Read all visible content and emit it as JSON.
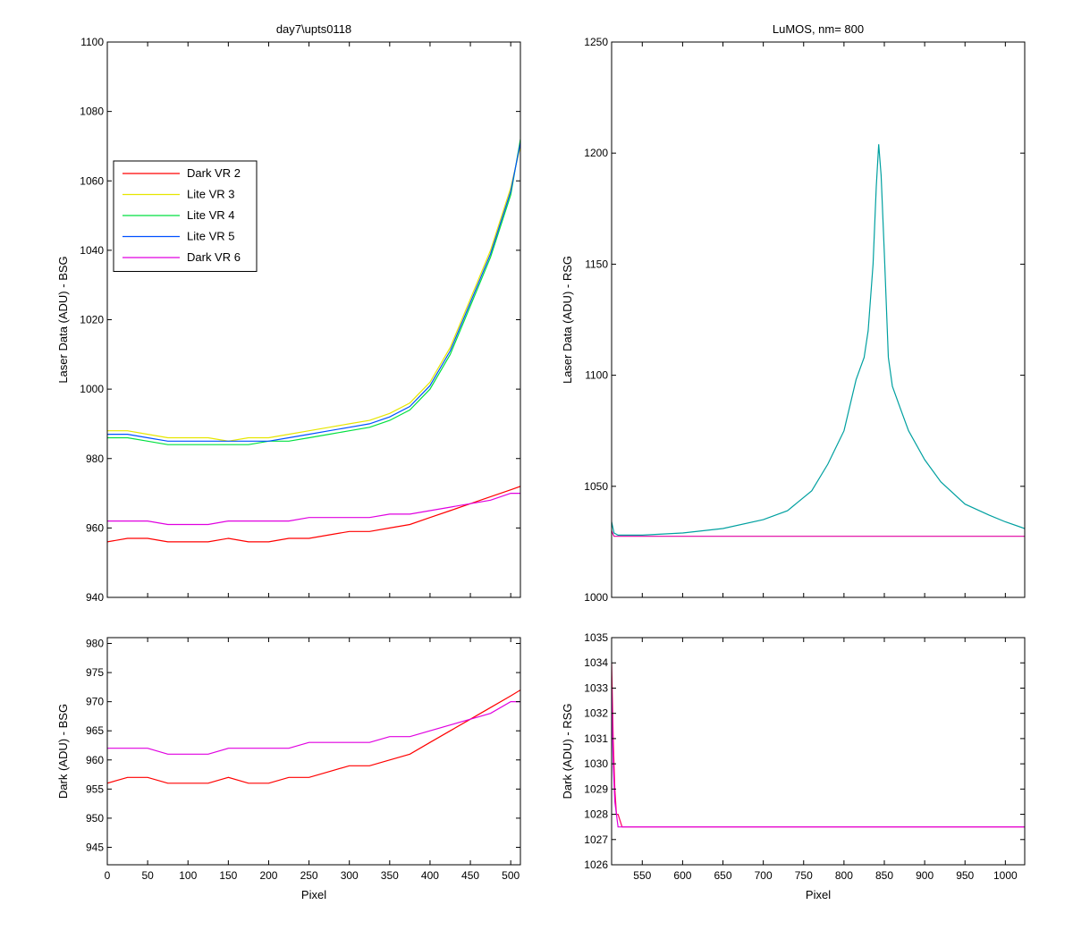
{
  "chart_data": [
    {
      "type": "line",
      "title": "day7\\upts0118",
      "xlabel": "",
      "ylabel": "Laser Data (ADU) - BSG",
      "xlim": [
        0,
        512
      ],
      "ylim": [
        940,
        1100
      ],
      "yticks": [
        940,
        960,
        980,
        1000,
        1020,
        1040,
        1060,
        1080,
        1100
      ],
      "xticks": [],
      "legend": {
        "placement": "upper-left",
        "entries": [
          "Dark VR 2",
          "Lite VR 3",
          "Lite VR 4",
          "Lite VR 5",
          "Dark VR 6"
        ]
      },
      "series": [
        {
          "name": "Dark VR 2",
          "color": "#ff0000",
          "x": [
            0,
            25,
            50,
            75,
            100,
            125,
            150,
            175,
            200,
            225,
            250,
            275,
            300,
            325,
            350,
            375,
            400,
            425,
            450,
            475,
            500,
            512
          ],
          "values": [
            956,
            957,
            957,
            956,
            956,
            956,
            957,
            956,
            956,
            957,
            957,
            958,
            959,
            959,
            960,
            961,
            963,
            965,
            967,
            969,
            971,
            972
          ]
        },
        {
          "name": "Lite VR 3",
          "color": "#e6e600",
          "x": [
            0,
            25,
            50,
            75,
            100,
            125,
            150,
            175,
            200,
            225,
            250,
            275,
            300,
            325,
            350,
            375,
            400,
            425,
            450,
            475,
            500,
            512
          ],
          "values": [
            988,
            988,
            987,
            986,
            986,
            986,
            985,
            986,
            986,
            987,
            988,
            989,
            990,
            991,
            993,
            996,
            1002,
            1012,
            1026,
            1040,
            1058,
            1070
          ]
        },
        {
          "name": "Lite VR 4",
          "color": "#00e040",
          "x": [
            0,
            25,
            50,
            75,
            100,
            125,
            150,
            175,
            200,
            225,
            250,
            275,
            300,
            325,
            350,
            375,
            400,
            425,
            450,
            475,
            500,
            512
          ],
          "values": [
            986,
            986,
            985,
            984,
            984,
            984,
            984,
            984,
            985,
            985,
            986,
            987,
            988,
            989,
            991,
            994,
            1000,
            1010,
            1024,
            1038,
            1056,
            1072
          ]
        },
        {
          "name": "Lite VR 5",
          "color": "#0050ff",
          "x": [
            0,
            25,
            50,
            75,
            100,
            125,
            150,
            175,
            200,
            225,
            250,
            275,
            300,
            325,
            350,
            375,
            400,
            425,
            450,
            475,
            500,
            512
          ],
          "values": [
            987,
            987,
            986,
            985,
            985,
            985,
            985,
            985,
            985,
            986,
            987,
            988,
            989,
            990,
            992,
            995,
            1001,
            1011,
            1025,
            1039,
            1057,
            1071
          ]
        },
        {
          "name": "Dark VR 6",
          "color": "#e000e0",
          "x": [
            0,
            25,
            50,
            75,
            100,
            125,
            150,
            175,
            200,
            225,
            250,
            275,
            300,
            325,
            350,
            375,
            400,
            425,
            450,
            475,
            500,
            512
          ],
          "values": [
            962,
            962,
            962,
            961,
            961,
            961,
            962,
            962,
            962,
            962,
            963,
            963,
            963,
            963,
            964,
            964,
            965,
            966,
            967,
            968,
            970,
            970
          ]
        }
      ]
    },
    {
      "type": "line",
      "title": "LuMOS, nm= 800",
      "xlabel": "",
      "ylabel": "Laser Data (ADU) - RSG",
      "xlim": [
        512,
        1024
      ],
      "ylim": [
        1000,
        1250
      ],
      "yticks": [
        1000,
        1050,
        1100,
        1150,
        1200,
        1250
      ],
      "xticks": [],
      "series": [
        {
          "name": "",
          "color": "#00a0a0",
          "x": [
            512,
            515,
            520,
            550,
            600,
            650,
            700,
            730,
            760,
            780,
            800,
            815,
            820,
            825,
            830,
            836,
            840,
            843,
            846,
            850,
            855,
            860,
            870,
            880,
            900,
            920,
            950,
            980,
            1000,
            1024
          ],
          "values": [
            1034,
            1029,
            1028,
            1028,
            1029,
            1031,
            1035,
            1039,
            1048,
            1060,
            1075,
            1098,
            1103,
            1108,
            1120,
            1150,
            1185,
            1204,
            1190,
            1155,
            1108,
            1095,
            1085,
            1075,
            1062,
            1052,
            1042,
            1037,
            1034,
            1031
          ]
        },
        {
          "name": "",
          "color": "#e000a0",
          "x": [
            512,
            515,
            520,
            600,
            700,
            800,
            900,
            1024
          ],
          "values": [
            1030,
            1027.5,
            1027.5,
            1027.5,
            1027.5,
            1027.5,
            1027.5,
            1027.5
          ]
        }
      ]
    },
    {
      "type": "line",
      "title": "",
      "xlabel": "Pixel",
      "ylabel": "Dark (ADU) - BSG",
      "xlim": [
        0,
        512
      ],
      "ylim": [
        942,
        981
      ],
      "yticks": [
        945,
        950,
        955,
        960,
        965,
        970,
        975,
        980
      ],
      "xticks": [
        0,
        50,
        100,
        150,
        200,
        250,
        300,
        350,
        400,
        450,
        500
      ],
      "series": [
        {
          "name": "Dark VR 2",
          "color": "#ff0000",
          "x": [
            0,
            25,
            50,
            75,
            100,
            125,
            150,
            175,
            200,
            225,
            250,
            275,
            300,
            325,
            350,
            375,
            400,
            425,
            450,
            475,
            500,
            512
          ],
          "values": [
            956,
            957,
            957,
            956,
            956,
            956,
            957,
            956,
            956,
            957,
            957,
            958,
            959,
            959,
            960,
            961,
            963,
            965,
            967,
            969,
            971,
            972
          ]
        },
        {
          "name": "Dark VR 6",
          "color": "#e000e0",
          "x": [
            0,
            25,
            50,
            75,
            100,
            125,
            150,
            175,
            200,
            225,
            250,
            275,
            300,
            325,
            350,
            375,
            400,
            425,
            450,
            475,
            500,
            512
          ],
          "values": [
            962,
            962,
            962,
            961,
            961,
            961,
            962,
            962,
            962,
            962,
            963,
            963,
            963,
            963,
            964,
            964,
            965,
            966,
            967,
            968,
            970,
            970
          ]
        }
      ]
    },
    {
      "type": "line",
      "title": "",
      "xlabel": "Pixel",
      "ylabel": "Dark (ADU) - RSG",
      "xlim": [
        512,
        1024
      ],
      "ylim": [
        1026,
        1035
      ],
      "yticks": [
        1026,
        1027,
        1028,
        1029,
        1030,
        1031,
        1032,
        1033,
        1034,
        1035
      ],
      "xticks": [
        550,
        600,
        650,
        700,
        750,
        800,
        850,
        900,
        950,
        1000
      ],
      "series": [
        {
          "name": "",
          "color": "#ff0060",
          "x": [
            512,
            514,
            516,
            518,
            520,
            525,
            1024
          ],
          "values": [
            1034,
            1031,
            1029,
            1028,
            1028,
            1027.5,
            1027.5
          ]
        },
        {
          "name": "",
          "color": "#e000e0",
          "x": [
            512,
            514,
            516,
            518,
            520,
            525,
            1024
          ],
          "values": [
            1033,
            1030,
            1028.5,
            1028,
            1027.5,
            1027.5,
            1027.5
          ]
        }
      ]
    }
  ]
}
